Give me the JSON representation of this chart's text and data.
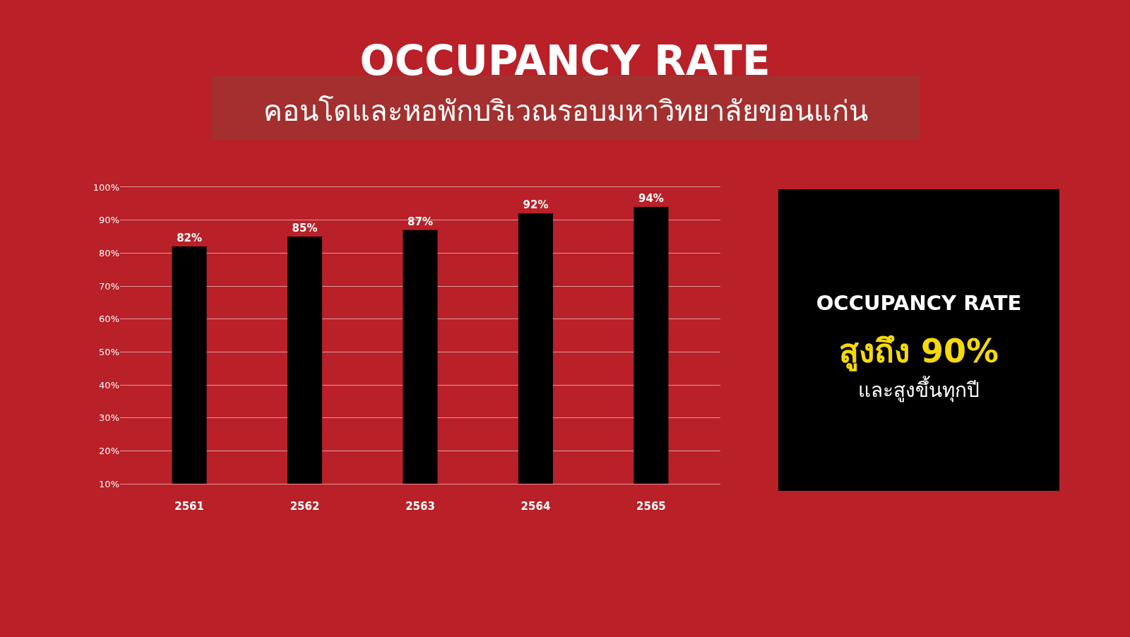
{
  "chart_data": {
    "type": "bar",
    "title": "OCCUPANCY RATE",
    "subtitle": "คอนโดและหอพักบริเวณรอบมหาวิทยาลัยขอนแก่น",
    "categories": [
      "2561",
      "2562",
      "2563",
      "2564",
      "2565"
    ],
    "values": [
      82,
      85,
      87,
      92,
      94
    ],
    "value_labels": [
      "82%",
      "85%",
      "87%",
      "92%",
      "94%"
    ],
    "color": "#000000",
    "ylim": [
      10,
      100
    ],
    "yticks": [
      {
        "value": 10,
        "label": "10%"
      },
      {
        "value": 20,
        "label": "20%"
      },
      {
        "value": 30,
        "label": "30%"
      },
      {
        "value": 40,
        "label": "40%"
      },
      {
        "value": 50,
        "label": "50%"
      },
      {
        "value": 60,
        "label": "60%"
      },
      {
        "value": 70,
        "label": "70%"
      },
      {
        "value": 80,
        "label": "80%"
      },
      {
        "value": 90,
        "label": "90%"
      },
      {
        "value": 100,
        "label": "100%"
      }
    ],
    "grid": "y",
    "annotations": [
      "OCCUPANCY RATE",
      "สูงถึง 90%",
      "และสูงขึ้นทุกปี"
    ]
  }
}
